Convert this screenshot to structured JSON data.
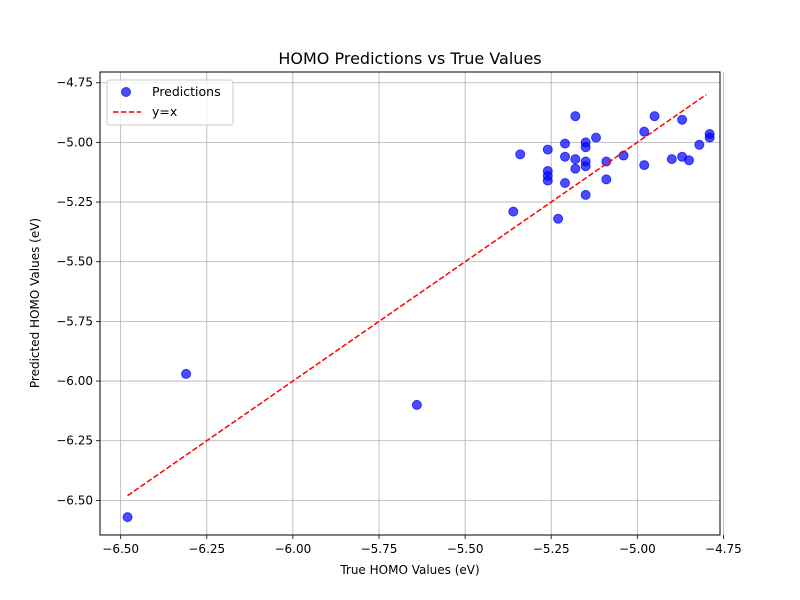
{
  "chart_data": {
    "type": "scatter",
    "title": "HOMO Predictions vs True Values",
    "xlabel": "True HOMO Values (eV)",
    "ylabel": "Predicted HOMO Values (eV)",
    "xlim": [
      -6.56,
      -4.76
    ],
    "ylim": [
      -6.645,
      -4.705
    ],
    "xticks": [
      -6.5,
      -6.25,
      -6.0,
      -5.75,
      -5.5,
      -5.25,
      -5.0,
      -4.75
    ],
    "xtick_labels": [
      "−6.50",
      "−6.25",
      "−6.00",
      "−5.75",
      "−5.50",
      "−5.25",
      "−5.00",
      "−4.75"
    ],
    "yticks": [
      -6.5,
      -6.25,
      -6.0,
      -5.75,
      -5.5,
      -5.25,
      -5.0,
      -4.75
    ],
    "ytick_labels": [
      "−6.50",
      "−6.25",
      "−6.00",
      "−5.75",
      "−5.50",
      "−5.25",
      "−5.00",
      "−4.75"
    ],
    "grid": true,
    "legend_position": "top-left",
    "series": [
      {
        "name": "Predictions",
        "kind": "scatter",
        "color": "#0000ff",
        "points": [
          [
            -6.48,
            -6.57
          ],
          [
            -6.31,
            -5.97
          ],
          [
            -5.64,
            -6.1
          ],
          [
            -5.36,
            -5.29
          ],
          [
            -5.34,
            -5.05
          ],
          [
            -5.26,
            -5.03
          ],
          [
            -5.26,
            -5.12
          ],
          [
            -5.26,
            -5.14
          ],
          [
            -5.26,
            -5.16
          ],
          [
            -5.23,
            -5.32
          ],
          [
            -5.21,
            -5.005
          ],
          [
            -5.21,
            -5.06
          ],
          [
            -5.21,
            -5.17
          ],
          [
            -5.18,
            -4.89
          ],
          [
            -5.18,
            -5.07
          ],
          [
            -5.18,
            -5.11
          ],
          [
            -5.15,
            -5.0
          ],
          [
            -5.15,
            -5.02
          ],
          [
            -5.15,
            -5.08
          ],
          [
            -5.15,
            -5.1
          ],
          [
            -5.15,
            -5.22
          ],
          [
            -5.12,
            -4.98
          ],
          [
            -5.09,
            -5.08
          ],
          [
            -5.09,
            -5.155
          ],
          [
            -5.04,
            -5.055
          ],
          [
            -4.98,
            -4.955
          ],
          [
            -4.98,
            -5.095
          ],
          [
            -4.95,
            -4.89
          ],
          [
            -4.9,
            -5.07
          ],
          [
            -4.87,
            -4.905
          ],
          [
            -4.87,
            -5.06
          ],
          [
            -4.85,
            -5.075
          ],
          [
            -4.82,
            -5.01
          ],
          [
            -4.79,
            -4.965
          ],
          [
            -4.79,
            -4.98
          ]
        ]
      },
      {
        "name": "y=x",
        "kind": "line",
        "color": "#ff0000",
        "style": "dashed",
        "points": [
          [
            -6.48,
            -6.48
          ],
          [
            -4.8,
            -4.8
          ]
        ]
      }
    ]
  }
}
